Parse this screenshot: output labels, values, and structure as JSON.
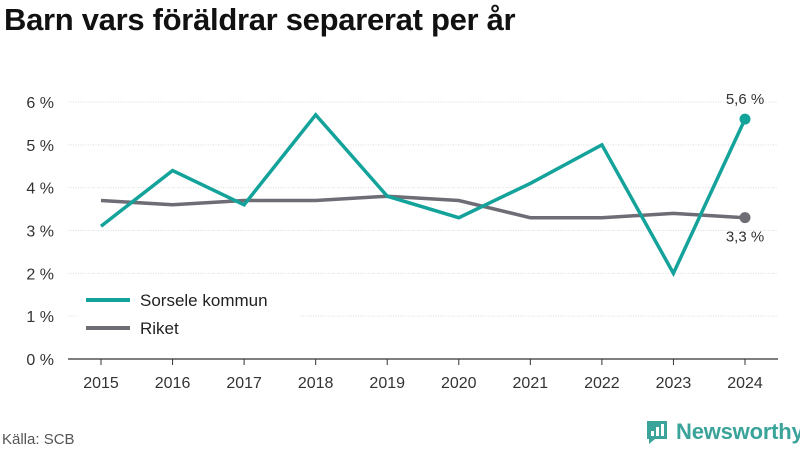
{
  "title": "Barn vars föräldrar separerat per år",
  "source": "Källa: SCB",
  "brand": {
    "name": "Newsworthy",
    "icon": "newsworthy-logo-icon",
    "color": "#3aa39a"
  },
  "chart_data": {
    "type": "line",
    "x": [
      2015,
      2016,
      2017,
      2018,
      2019,
      2020,
      2021,
      2022,
      2023,
      2024
    ],
    "ylim": [
      0,
      6
    ],
    "yticks": [
      0,
      1,
      2,
      3,
      4,
      5,
      6
    ],
    "ytick_labels": [
      "0 %",
      "1 %",
      "2 %",
      "3 %",
      "4 %",
      "5 %",
      "6 %"
    ],
    "xtick_labels": [
      "2015",
      "2016",
      "2017",
      "2018",
      "2019",
      "2020",
      "2021",
      "2022",
      "2023",
      "2024"
    ],
    "grid": "horizontal",
    "legend": "bottom-left",
    "series": [
      {
        "name": "Sorsele kommun",
        "color": "#14a39a",
        "values": [
          3.1,
          4.4,
          3.6,
          5.7,
          3.8,
          3.3,
          4.1,
          5.0,
          2.0,
          5.6
        ],
        "end_label": "5,6 %"
      },
      {
        "name": "Riket",
        "color": "#6e6d75",
        "values": [
          3.7,
          3.6,
          3.7,
          3.7,
          3.8,
          3.7,
          3.3,
          3.3,
          3.4,
          3.3
        ],
        "end_label": "3,3 %"
      }
    ]
  }
}
